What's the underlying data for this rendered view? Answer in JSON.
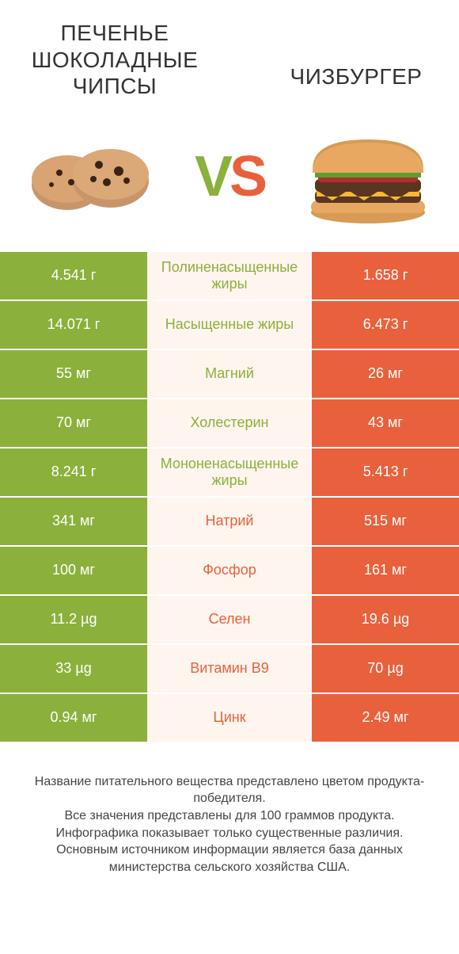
{
  "colors": {
    "green": "#8bb03b",
    "orange": "#e8613c",
    "mid_bg": "#fef5ee",
    "text": "#333333"
  },
  "header": {
    "left_title": "ПЕЧЕНЬЕ ШОКОЛАДНЫЕ ЧИПСЫ",
    "right_title": "ЧИЗБУРГЕР",
    "vs_v": "V",
    "vs_s": "S"
  },
  "rows": [
    {
      "left": "4.541 г",
      "label": "Полиненасыщенные жиры",
      "right": "1.658 г",
      "winner": "left"
    },
    {
      "left": "14.071 г",
      "label": "Насыщенные жиры",
      "right": "6.473 г",
      "winner": "left"
    },
    {
      "left": "55 мг",
      "label": "Магний",
      "right": "26 мг",
      "winner": "left"
    },
    {
      "left": "70 мг",
      "label": "Холестерин",
      "right": "43 мг",
      "winner": "left"
    },
    {
      "left": "8.241 г",
      "label": "Мононенасыщенные жиры",
      "right": "5.413 г",
      "winner": "left"
    },
    {
      "left": "341 мг",
      "label": "Натрий",
      "right": "515 мг",
      "winner": "right"
    },
    {
      "left": "100 мг",
      "label": "Фосфор",
      "right": "161 мг",
      "winner": "right"
    },
    {
      "left": "11.2 µg",
      "label": "Селен",
      "right": "19.6 µg",
      "winner": "right"
    },
    {
      "left": "33 µg",
      "label": "Витамин B9",
      "right": "70 µg",
      "winner": "right"
    },
    {
      "left": "0.94 мг",
      "label": "Цинк",
      "right": "2.49 мг",
      "winner": "right"
    }
  ],
  "footer": {
    "line1": "Название питательного вещества представлено цветом продукта-победителя.",
    "line2": "Все значения представлены для 100 граммов продукта.",
    "line3": "Инфографика показывает только существенные различия.",
    "line4": "Основным источником информации является база данных министерства сельского хозяйства США."
  }
}
